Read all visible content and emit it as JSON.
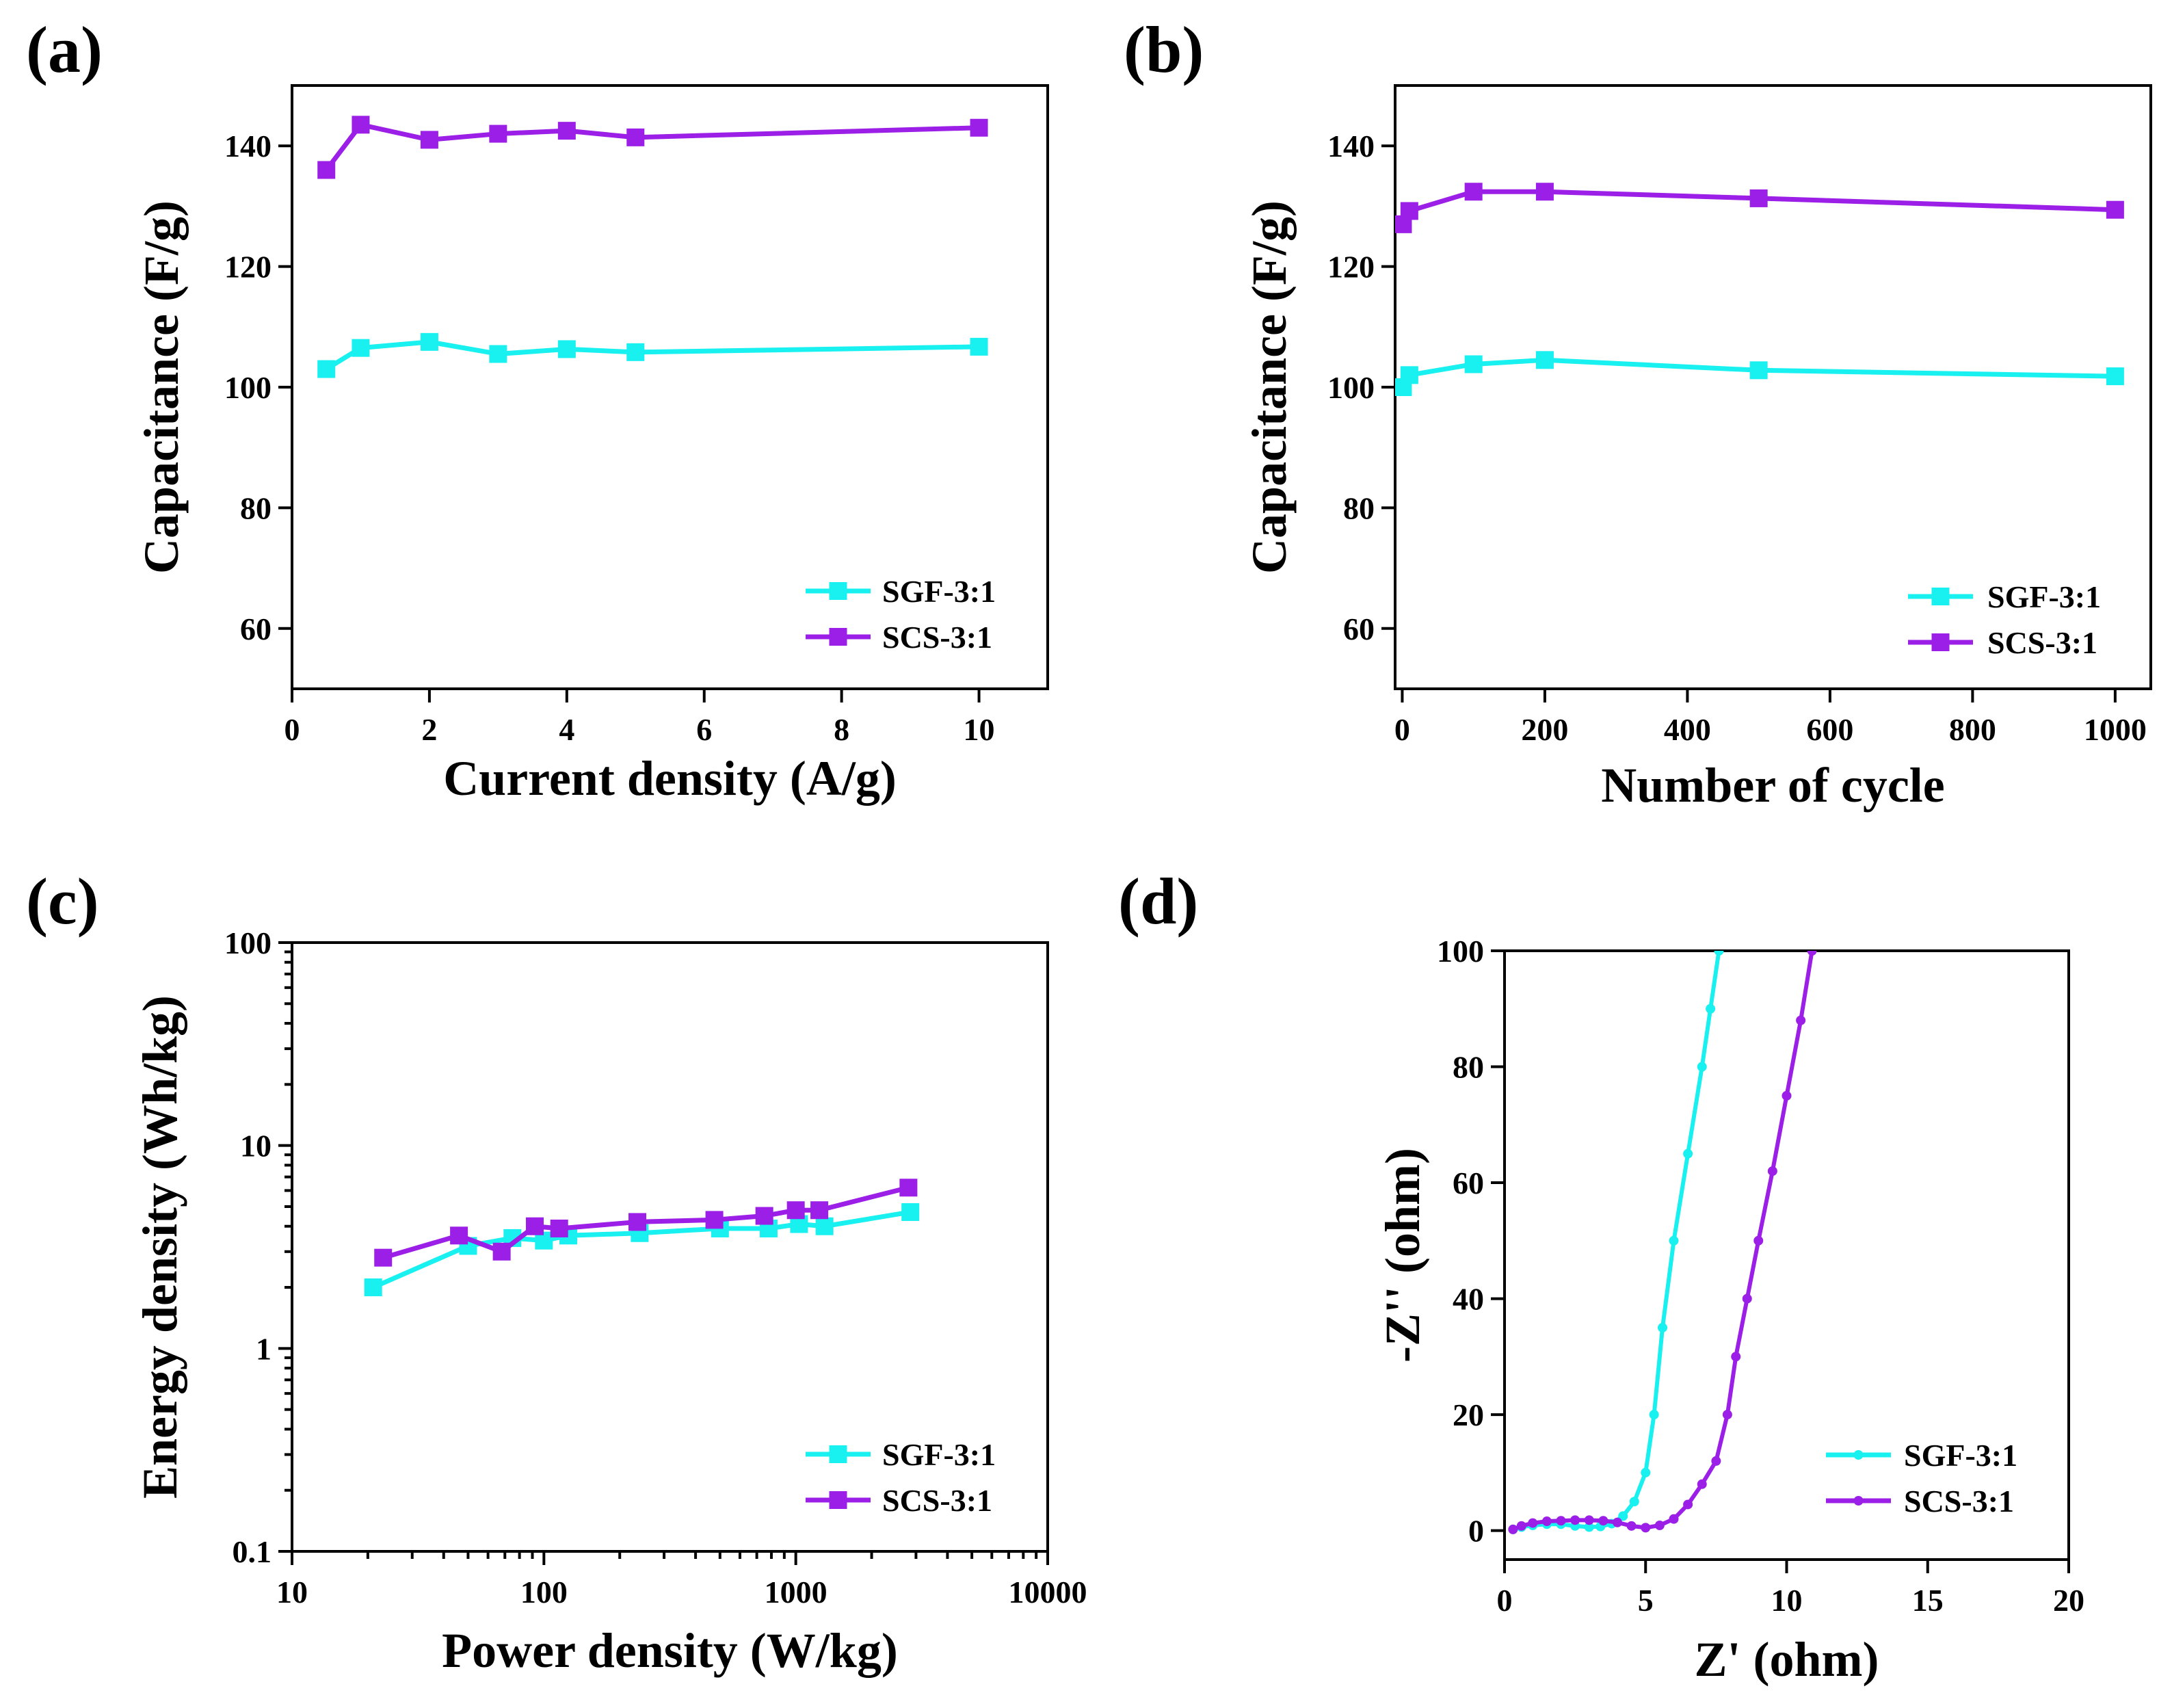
{
  "colors": {
    "sgf": "#19F0F0",
    "scs": "#9B1FE6",
    "axis": "#000000"
  },
  "chart_data": [
    {
      "panel": "(a)",
      "type": "line",
      "xlabel": "Current density (A/g)",
      "ylabel": "Capacitance (F/g)",
      "xlim": [
        0,
        11
      ],
      "ylim": [
        50,
        150
      ],
      "xticks": [
        0,
        2,
        4,
        6,
        8,
        10
      ],
      "yticks": [
        60,
        80,
        100,
        120,
        140
      ],
      "legend_position": "bottom-right",
      "series": [
        {
          "name": "SGF-3:1",
          "x": [
            0.5,
            1,
            2,
            3,
            4,
            5,
            10
          ],
          "values": [
            103,
            106.5,
            107.5,
            105.5,
            106.3,
            105.8,
            106.7
          ]
        },
        {
          "name": "SCS-3:1",
          "x": [
            0.5,
            1,
            2,
            3,
            4,
            5,
            10
          ],
          "values": [
            136,
            143.5,
            141,
            142,
            142.5,
            141.4,
            143
          ]
        }
      ]
    },
    {
      "panel": "(b)",
      "type": "line",
      "xlabel": "Number of cycle",
      "ylabel": "Capacitance (F/g)",
      "xlim": [
        -10,
        1050
      ],
      "ylim": [
        50,
        150
      ],
      "xticks": [
        0,
        200,
        400,
        600,
        800,
        1000
      ],
      "yticks": [
        60,
        80,
        100,
        120,
        140
      ],
      "legend_position": "bottom-right",
      "series": [
        {
          "name": "SGF-3:1",
          "x": [
            1,
            10,
            100,
            200,
            500,
            1000
          ],
          "values": [
            100,
            102,
            103.8,
            104.5,
            102.8,
            101.8
          ]
        },
        {
          "name": "SCS-3:1",
          "x": [
            1,
            10,
            100,
            200,
            500,
            1000
          ],
          "values": [
            127,
            129.2,
            132.4,
            132.4,
            131.3,
            129.4
          ]
        }
      ]
    },
    {
      "panel": "(c)",
      "type": "line",
      "xscale": "log",
      "yscale": "log",
      "xlabel": "Power density (W/kg)",
      "ylabel": "Energy density (Wh/kg)",
      "xlim": [
        10,
        10000
      ],
      "ylim": [
        0.1,
        100
      ],
      "xticks": [
        10,
        100,
        1000,
        10000
      ],
      "xtick_labels": [
        "10",
        "100",
        "1000",
        "10000"
      ],
      "yticks": [
        0.1,
        1,
        10,
        100
      ],
      "ytick_labels": [
        "0.1",
        "1",
        "10",
        "100"
      ],
      "legend_position": "bottom-right",
      "series": [
        {
          "name": "SGF-3:1",
          "x": [
            21,
            50,
            75,
            100,
            125,
            240,
            500,
            780,
            1030,
            1300,
            2850
          ],
          "values": [
            2.0,
            3.2,
            3.5,
            3.4,
            3.6,
            3.7,
            3.9,
            3.9,
            4.1,
            4.0,
            4.7
          ]
        },
        {
          "name": "SCS-3:1",
          "x": [
            23,
            46,
            68,
            92,
            115,
            235,
            475,
            750,
            1000,
            1240,
            2800
          ],
          "values": [
            2.8,
            3.6,
            3.0,
            4.0,
            3.9,
            4.2,
            4.3,
            4.5,
            4.8,
            4.8,
            6.2
          ]
        }
      ]
    },
    {
      "panel": "(d)",
      "type": "line",
      "xlabel": "Z' (ohm)",
      "ylabel": "-Z'' (ohm)",
      "xlim": [
        0,
        20
      ],
      "ylim": [
        -5,
        100
      ],
      "xticks": [
        0,
        5,
        10,
        15,
        20
      ],
      "yticks": [
        0,
        20,
        40,
        60,
        80,
        100
      ],
      "legend_position": "bottom-right",
      "series": [
        {
          "name": "SGF-3:1",
          "x": [
            0.3,
            0.6,
            1.0,
            1.5,
            2.0,
            2.5,
            3.0,
            3.4,
            3.8,
            4.2,
            4.6,
            5.0,
            5.3,
            5.6,
            6.0,
            6.5,
            7.0,
            7.3,
            7.6
          ],
          "values": [
            0.2,
            0.6,
            0.9,
            1.1,
            1.1,
            0.8,
            0.6,
            0.7,
            1.2,
            2.5,
            5,
            10,
            20,
            35,
            50,
            65,
            80,
            90,
            100
          ]
        },
        {
          "name": "SCS-3:1",
          "x": [
            0.3,
            0.6,
            1.0,
            1.5,
            2.0,
            2.5,
            3.0,
            3.5,
            4.0,
            4.5,
            5.0,
            5.5,
            6.0,
            6.5,
            7.0,
            7.5,
            7.9,
            8.2,
            8.6,
            9.0,
            9.5,
            10.0,
            10.5,
            10.9
          ],
          "values": [
            0.2,
            0.8,
            1.3,
            1.6,
            1.7,
            1.8,
            1.8,
            1.7,
            1.4,
            0.8,
            0.5,
            0.9,
            2,
            4.5,
            8,
            12,
            20,
            30,
            40,
            50,
            62,
            75,
            88,
            100
          ]
        }
      ]
    }
  ]
}
